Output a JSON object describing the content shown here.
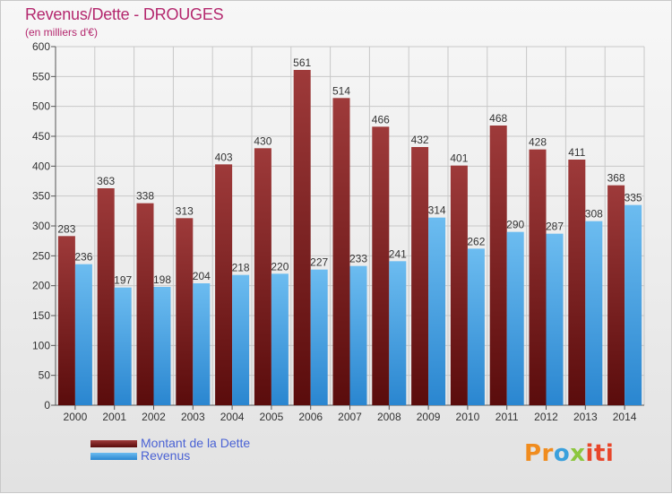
{
  "header": {
    "title": "Revenus/Dette - DROUGES",
    "subtitle": "(en milliers d'€)"
  },
  "legend": {
    "debt_label": "Montant de la Dette",
    "revenue_label": "Revenus"
  },
  "logo": {
    "text": "Proxiti",
    "colors": [
      "#f08c1e",
      "#3aa0dc",
      "#8cc63e",
      "#e8462a"
    ]
  },
  "colors": {
    "debt_top": "#9e3a3a",
    "debt_bottom": "#5a0c0c",
    "revenue_top": "#6cbcf0",
    "revenue_bottom": "#2a86d0",
    "title": "#b4286e"
  },
  "chart_data": {
    "type": "bar",
    "title": "Revenus/Dette - DROUGES",
    "subtitle": "(en milliers d'€)",
    "xlabel": "",
    "ylabel": "",
    "ylim": [
      0,
      600
    ],
    "yticks": [
      0,
      50,
      100,
      150,
      200,
      250,
      300,
      350,
      400,
      450,
      500,
      550,
      600
    ],
    "grid": true,
    "legend_position": "bottom-left",
    "categories": [
      "2000",
      "2001",
      "2002",
      "2003",
      "2004",
      "2005",
      "2006",
      "2007",
      "2008",
      "2009",
      "2010",
      "2011",
      "2012",
      "2013",
      "2014"
    ],
    "series": [
      {
        "name": "Montant de la Dette",
        "values": [
          283,
          363,
          338,
          313,
          403,
          430,
          561,
          514,
          466,
          432,
          401,
          468,
          428,
          411,
          368
        ]
      },
      {
        "name": "Revenus",
        "values": [
          236,
          197,
          198,
          204,
          218,
          220,
          227,
          233,
          241,
          314,
          262,
          290,
          287,
          308,
          335
        ]
      }
    ]
  }
}
